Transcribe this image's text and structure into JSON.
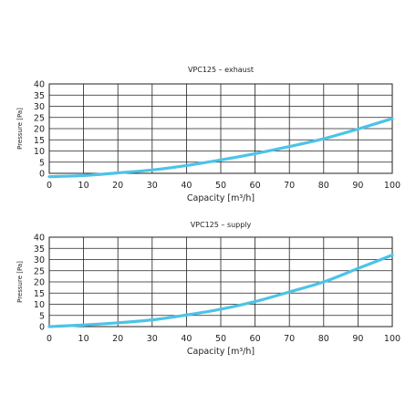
{
  "accent_color": "#4cc3e8",
  "chart_data": [
    {
      "type": "line",
      "title": "VPC125 – exhaust",
      "xlabel": "Capacity [m³/h]",
      "ylabel": "Pressure [Pa]",
      "xlim": [
        0,
        100
      ],
      "ylim": [
        0,
        40
      ],
      "x_ticks": [
        0,
        10,
        20,
        30,
        40,
        50,
        60,
        70,
        80,
        90,
        100
      ],
      "y_ticks": [
        0,
        5,
        10,
        15,
        20,
        25,
        30,
        35,
        40
      ],
      "grid": true,
      "series": [
        {
          "x": [
            0,
            10,
            20,
            30,
            40,
            50,
            60,
            70,
            80,
            90,
            100
          ],
          "y": [
            -1.5,
            -1.0,
            0.2,
            1.5,
            3.5,
            6.0,
            8.8,
            12.0,
            15.5,
            19.8,
            24.5
          ]
        }
      ]
    },
    {
      "type": "line",
      "title": "VPC125 – supply",
      "xlabel": "Capacity [m³/h]",
      "ylabel": "Pressure [Pa]",
      "xlim": [
        0,
        100
      ],
      "ylim": [
        0,
        40
      ],
      "x_ticks": [
        0,
        10,
        20,
        30,
        40,
        50,
        60,
        70,
        80,
        90,
        100
      ],
      "y_ticks": [
        0,
        5,
        10,
        15,
        20,
        25,
        30,
        35,
        40
      ],
      "grid": true,
      "series": [
        {
          "x": [
            0,
            10,
            20,
            30,
            40,
            50,
            60,
            70,
            80,
            90,
            100
          ],
          "y": [
            0,
            0.7,
            1.7,
            3.0,
            5.2,
            7.8,
            11.2,
            15.5,
            20.0,
            26.0,
            32.0
          ]
        }
      ]
    }
  ]
}
